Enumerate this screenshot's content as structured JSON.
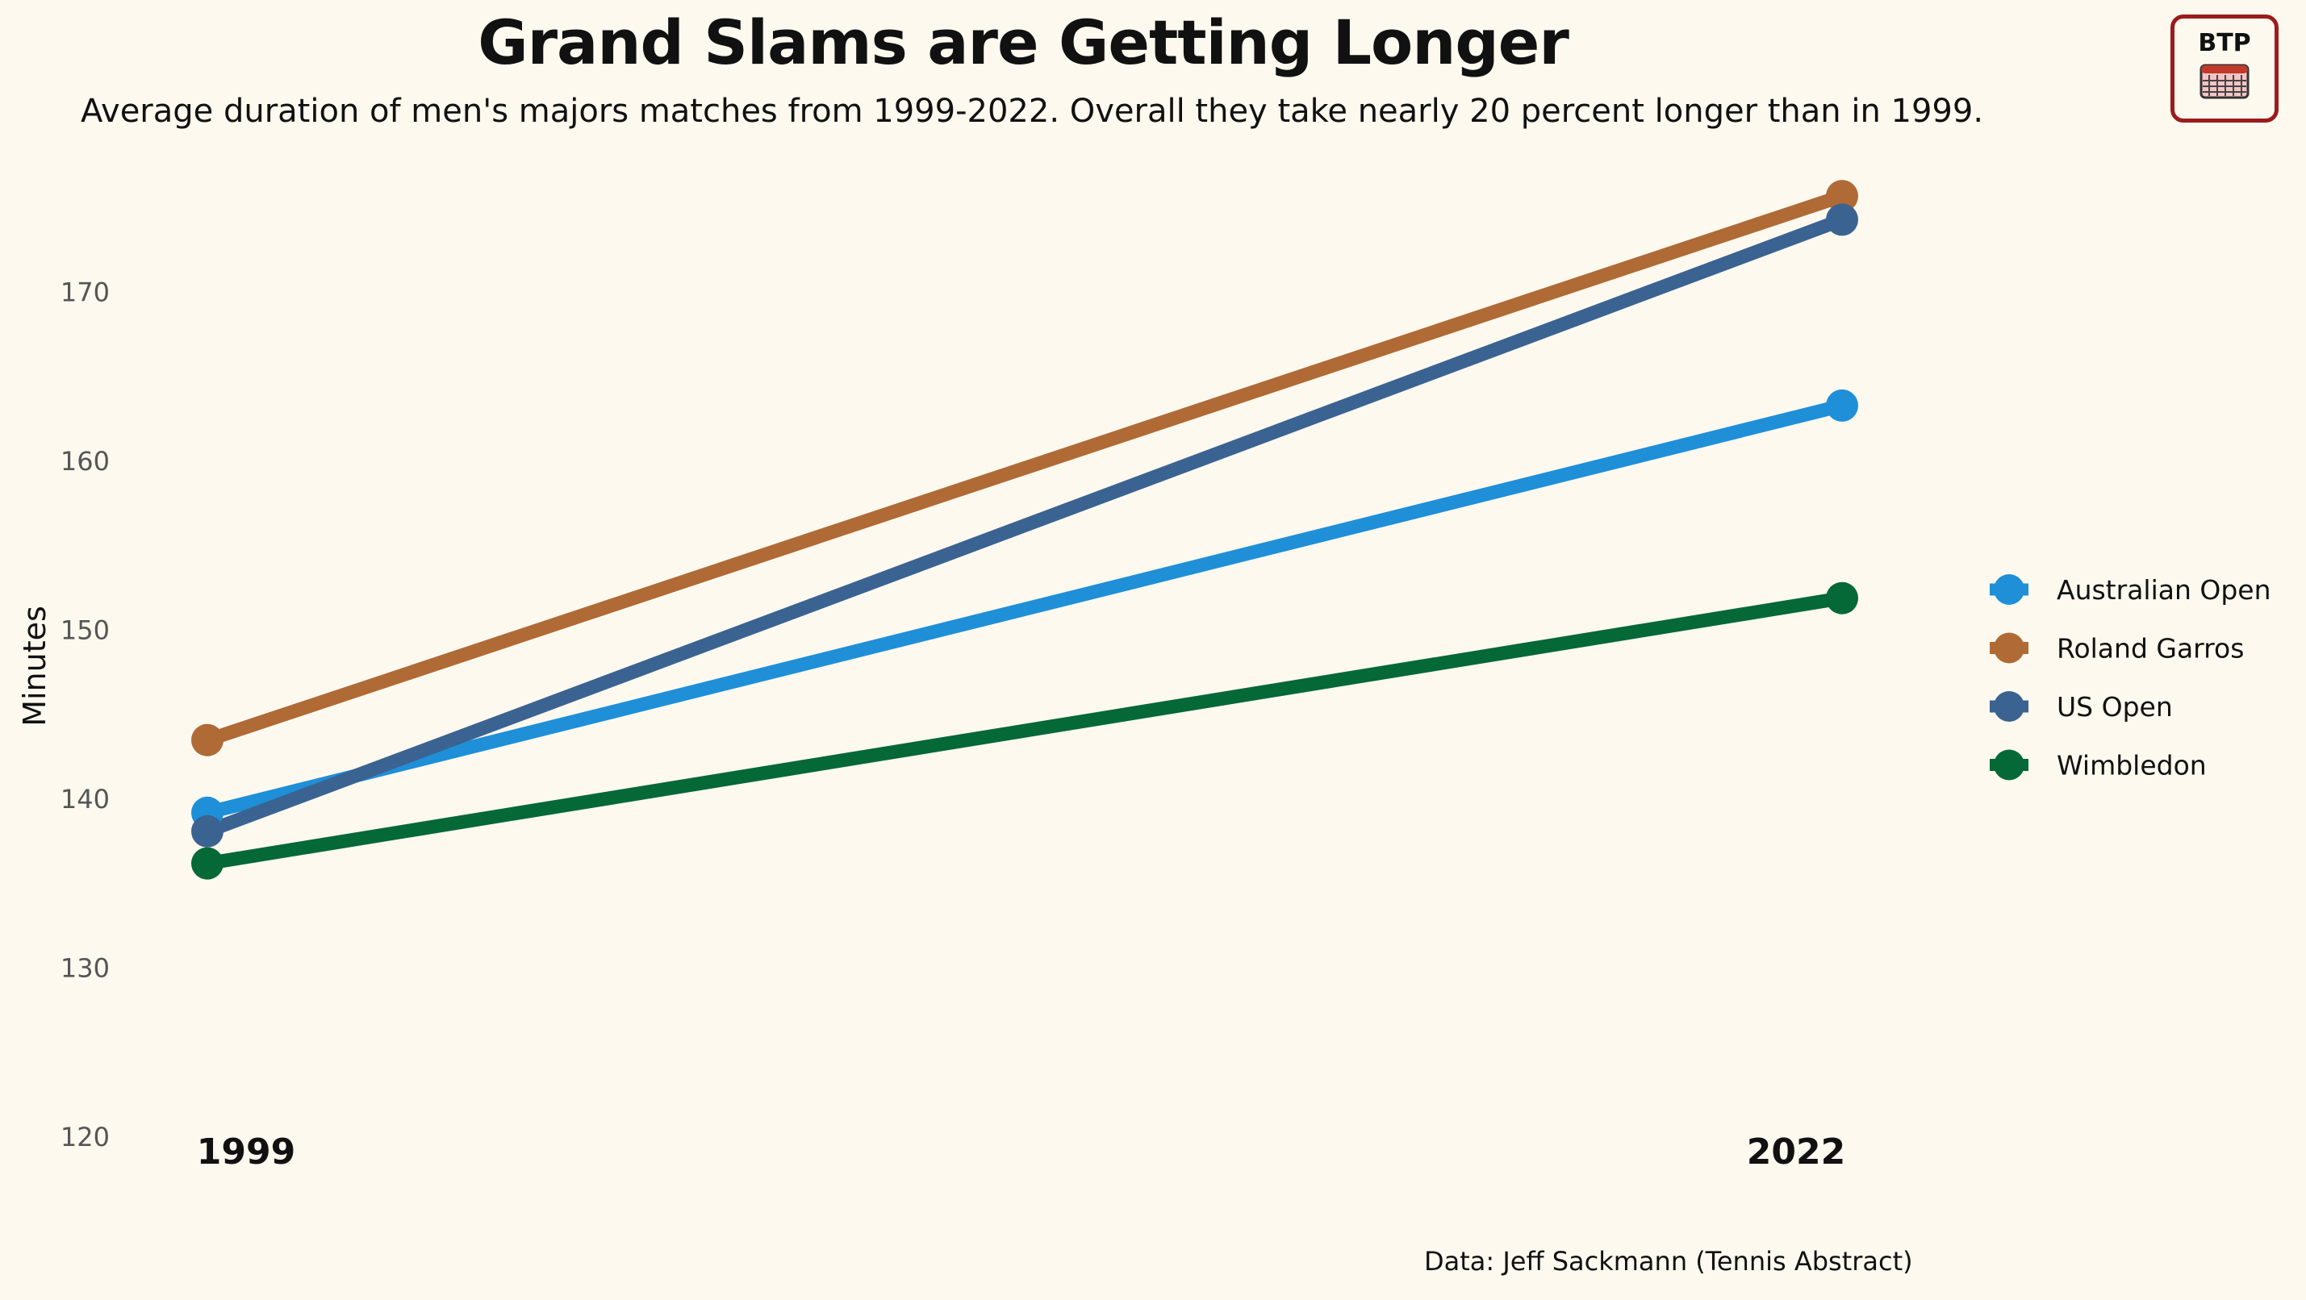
{
  "title": "Grand Slams are Getting Longer",
  "subtitle": "Average duration of men's majors matches from 1999-2022. Overall they take nearly 20 percent longer than in 1999.",
  "logo": {
    "text": "BTP",
    "icon": "calendar-icon"
  },
  "source": "Data: Jeff Sackmann (Tennis Abstract)",
  "chart_data": {
    "type": "line",
    "x": [
      "1999",
      "2022"
    ],
    "ylabel": "Minutes",
    "ylim": [
      120,
      177
    ],
    "yticks": [
      "120",
      "130",
      "140",
      "150",
      "160",
      "170"
    ],
    "grid": false,
    "legend_position": "right",
    "series": [
      {
        "name": "Australian Open",
        "color": "#1f8fd8",
        "values": [
          139.2,
          163.3
        ]
      },
      {
        "name": "Roland Garros",
        "color": "#b06a36",
        "values": [
          143.5,
          175.7
        ]
      },
      {
        "name": "US Open",
        "color": "#3b6391",
        "values": [
          138.1,
          174.3
        ]
      },
      {
        "name": "Wimbledon",
        "color": "#056837",
        "values": [
          136.2,
          151.9
        ]
      }
    ]
  }
}
